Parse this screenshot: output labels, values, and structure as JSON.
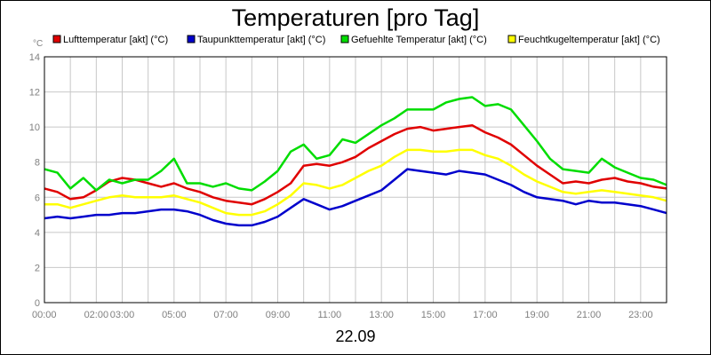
{
  "chart_data": {
    "type": "line",
    "title": "Temperaturen [pro Tag]",
    "ylabel": "°C",
    "ylim": [
      0,
      14
    ],
    "yticks": [
      0,
      2,
      4,
      6,
      8,
      10,
      12,
      14
    ],
    "xlim_hours": [
      0,
      24
    ],
    "x_tick_labels": [
      "00:00",
      "02:00",
      "03:00",
      "05:00",
      "07:00",
      "09:00",
      "11:00",
      "13:00",
      "15:00",
      "17:00",
      "19:00",
      "21:00",
      "23:00"
    ],
    "x_tick_hours": [
      0,
      2,
      3,
      5,
      7,
      9,
      11,
      13,
      15,
      17,
      19,
      21,
      23
    ],
    "date_label": "22.09",
    "grid": true,
    "x_hours": [
      0,
      0.5,
      1,
      1.5,
      2,
      2.5,
      3,
      3.5,
      4,
      4.5,
      5,
      5.5,
      6,
      6.5,
      7,
      7.5,
      8,
      8.5,
      9,
      9.5,
      10,
      10.5,
      11,
      11.5,
      12,
      12.5,
      13,
      13.5,
      14,
      14.5,
      15,
      15.5,
      16,
      16.5,
      17,
      17.5,
      18,
      18.5,
      19,
      19.5,
      20,
      20.5,
      21,
      21.5,
      22,
      22.5,
      23,
      23.5,
      24
    ],
    "series": [
      {
        "name": "Lufttemperatur [akt] (°C)",
        "color": "#e00000",
        "values": [
          6.5,
          6.3,
          5.9,
          6.0,
          6.4,
          6.9,
          7.1,
          7.0,
          6.8,
          6.6,
          6.8,
          6.5,
          6.3,
          6.0,
          5.8,
          5.7,
          5.6,
          5.9,
          6.3,
          6.8,
          7.8,
          7.9,
          7.8,
          8.0,
          8.3,
          8.8,
          9.2,
          9.6,
          9.9,
          10.0,
          9.8,
          9.9,
          10.0,
          10.1,
          9.7,
          9.4,
          9.0,
          8.4,
          7.8,
          7.3,
          6.8,
          6.9,
          6.8,
          7.0,
          7.1,
          6.9,
          6.8,
          6.6,
          6.5
        ]
      },
      {
        "name": "Taupunkttemperatur [akt] (°C)",
        "color": "#0000cc",
        "values": [
          4.8,
          4.9,
          4.8,
          4.9,
          5.0,
          5.0,
          5.1,
          5.1,
          5.2,
          5.3,
          5.3,
          5.2,
          5.0,
          4.7,
          4.5,
          4.4,
          4.4,
          4.6,
          4.9,
          5.4,
          5.9,
          5.6,
          5.3,
          5.5,
          5.8,
          6.1,
          6.4,
          7.0,
          7.6,
          7.5,
          7.4,
          7.3,
          7.5,
          7.4,
          7.3,
          7.0,
          6.7,
          6.3,
          6.0,
          5.9,
          5.8,
          5.6,
          5.8,
          5.7,
          5.7,
          5.6,
          5.5,
          5.3,
          5.1
        ]
      },
      {
        "name": "Gefuehlte Temperatur [akt] (°C)",
        "color": "#00dd00",
        "values": [
          7.6,
          7.4,
          6.5,
          7.1,
          6.4,
          7.0,
          6.8,
          7.0,
          7.0,
          7.5,
          8.2,
          6.8,
          6.8,
          6.6,
          6.8,
          6.5,
          6.4,
          6.9,
          7.5,
          8.6,
          9.0,
          8.2,
          8.4,
          9.3,
          9.1,
          9.6,
          10.1,
          10.5,
          11.0,
          11.0,
          11.0,
          11.4,
          11.6,
          11.7,
          11.2,
          11.3,
          11.0,
          10.1,
          9.2,
          8.2,
          7.6,
          7.5,
          7.4,
          8.2,
          7.7,
          7.4,
          7.1,
          7.0,
          6.7
        ]
      },
      {
        "name": "Feuchtkugeltemperatur [akt] (°C)",
        "color": "#ffff00",
        "values": [
          5.6,
          5.6,
          5.4,
          5.6,
          5.8,
          6.0,
          6.1,
          6.0,
          6.0,
          6.0,
          6.1,
          5.9,
          5.7,
          5.4,
          5.1,
          5.0,
          5.0,
          5.2,
          5.6,
          6.1,
          6.8,
          6.7,
          6.5,
          6.7,
          7.1,
          7.5,
          7.8,
          8.3,
          8.7,
          8.7,
          8.6,
          8.6,
          8.7,
          8.7,
          8.4,
          8.2,
          7.8,
          7.3,
          6.9,
          6.6,
          6.3,
          6.2,
          6.3,
          6.4,
          6.3,
          6.2,
          6.1,
          6.0,
          5.8
        ]
      }
    ]
  }
}
